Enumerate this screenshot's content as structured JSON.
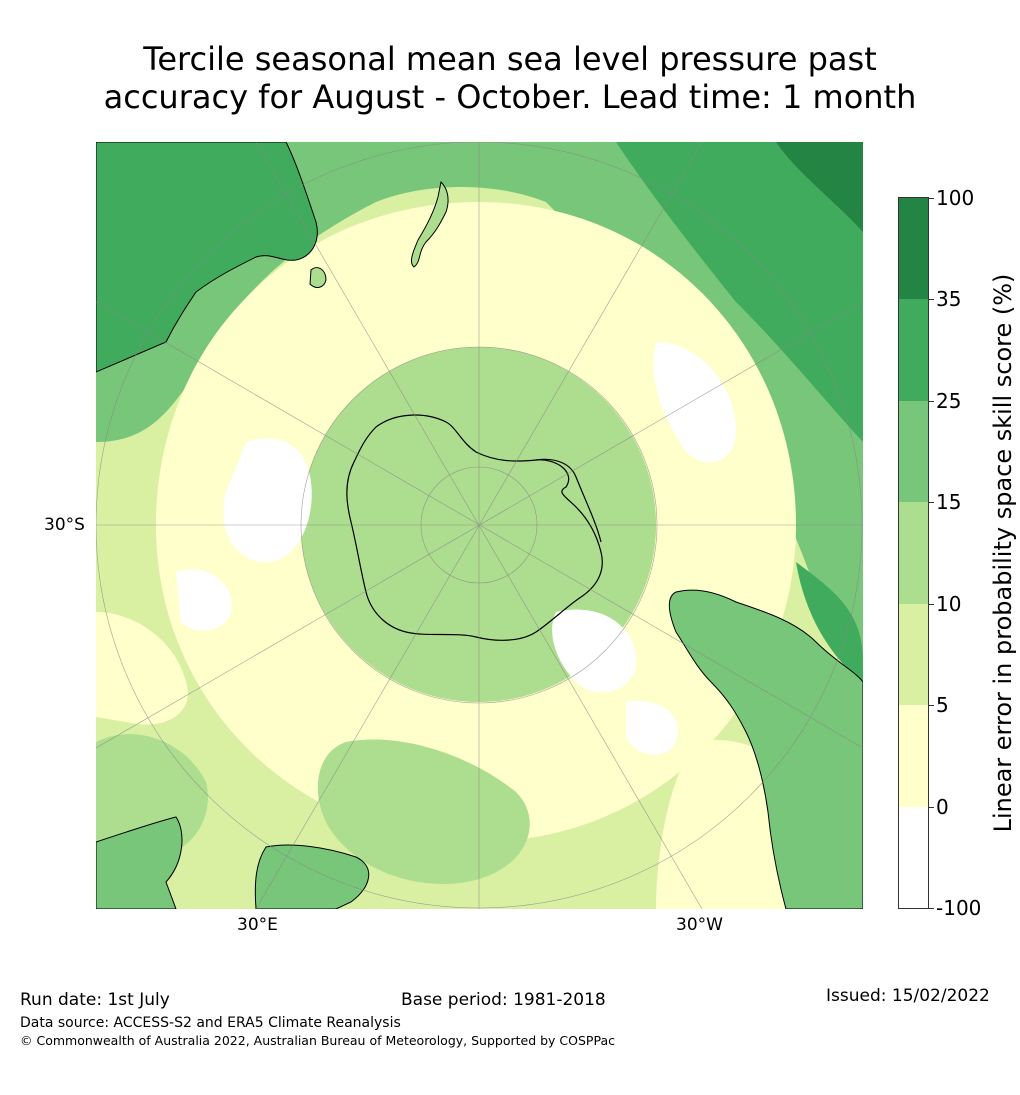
{
  "title": {
    "line1": "Tercile seasonal mean sea level pressure past",
    "line2": "accuracy for August - October. Lead time: 1 month"
  },
  "map": {
    "projection": "south-polar-stereographic",
    "lat_label_left": "30°S",
    "lon_label_left": "30°E",
    "lon_label_right": "30°W"
  },
  "colorbar": {
    "title": "Linear error in probability space skill score (%)",
    "ticks": [
      "-100",
      "0",
      "5",
      "10",
      "15",
      "25",
      "35",
      "100"
    ],
    "bins": [
      {
        "from": "-100",
        "to": "0",
        "color": "#ffffff"
      },
      {
        "from": "0",
        "to": "5",
        "color": "#ffffcc"
      },
      {
        "from": "5",
        "to": "10",
        "color": "#d9f0a3"
      },
      {
        "from": "10",
        "to": "15",
        "color": "#addd8e"
      },
      {
        "from": "15",
        "to": "25",
        "color": "#78c679"
      },
      {
        "from": "25",
        "to": "35",
        "color": "#41ab5d"
      },
      {
        "from": "35",
        "to": "100",
        "color": "#238443"
      }
    ]
  },
  "footer": {
    "run_date": "Run date: 1st July",
    "base_period": "Base period: 1981-2018",
    "issued": "Issued: 15/02/2022",
    "data_source": "Data source: ACCESS-S2 and ERA5 Climate Reanalysis",
    "copyright": "© Commonwealth of Australia 2022, Australian Bureau of Meteorology, Supported by COSPPac"
  }
}
